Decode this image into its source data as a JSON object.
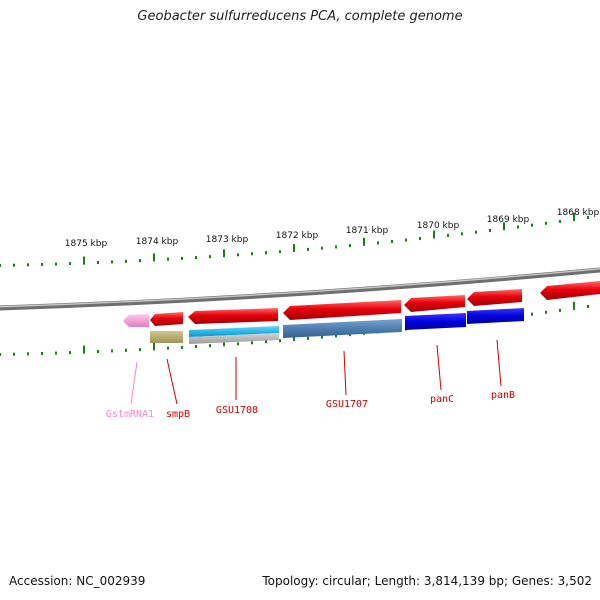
{
  "title": "Geobacter sulfurreducens PCA, complete genome",
  "footer": {
    "accession": "Accession: NC_002939",
    "topology": "Topology: circular; Length: 3,814,139 bp; Genes: 3,502"
  },
  "scale_labels": [
    "1875 kbp",
    "1874 kbp",
    "1873 kbp",
    "1872 kbp",
    "1871 kbp",
    "1870 kbp",
    "1869 kbp",
    "1868 kbp"
  ],
  "gene_labels": [
    "GstmRNA1",
    "smpB",
    "GSU1708",
    "GSU1707",
    "panC",
    "panB"
  ],
  "colors": {
    "cds": "#e8000b",
    "rna": "#f5a3d8",
    "olive": "#b8b070",
    "cyan": "#00b4e6",
    "steel": "#4f7fb0",
    "blue": "#0000dd",
    "gray": "#b4b4b4",
    "backbone": "#8a8a8a",
    "tick": "#1f7a1f",
    "label_red": "#cc0000",
    "label_pink": "#f08cc8"
  }
}
